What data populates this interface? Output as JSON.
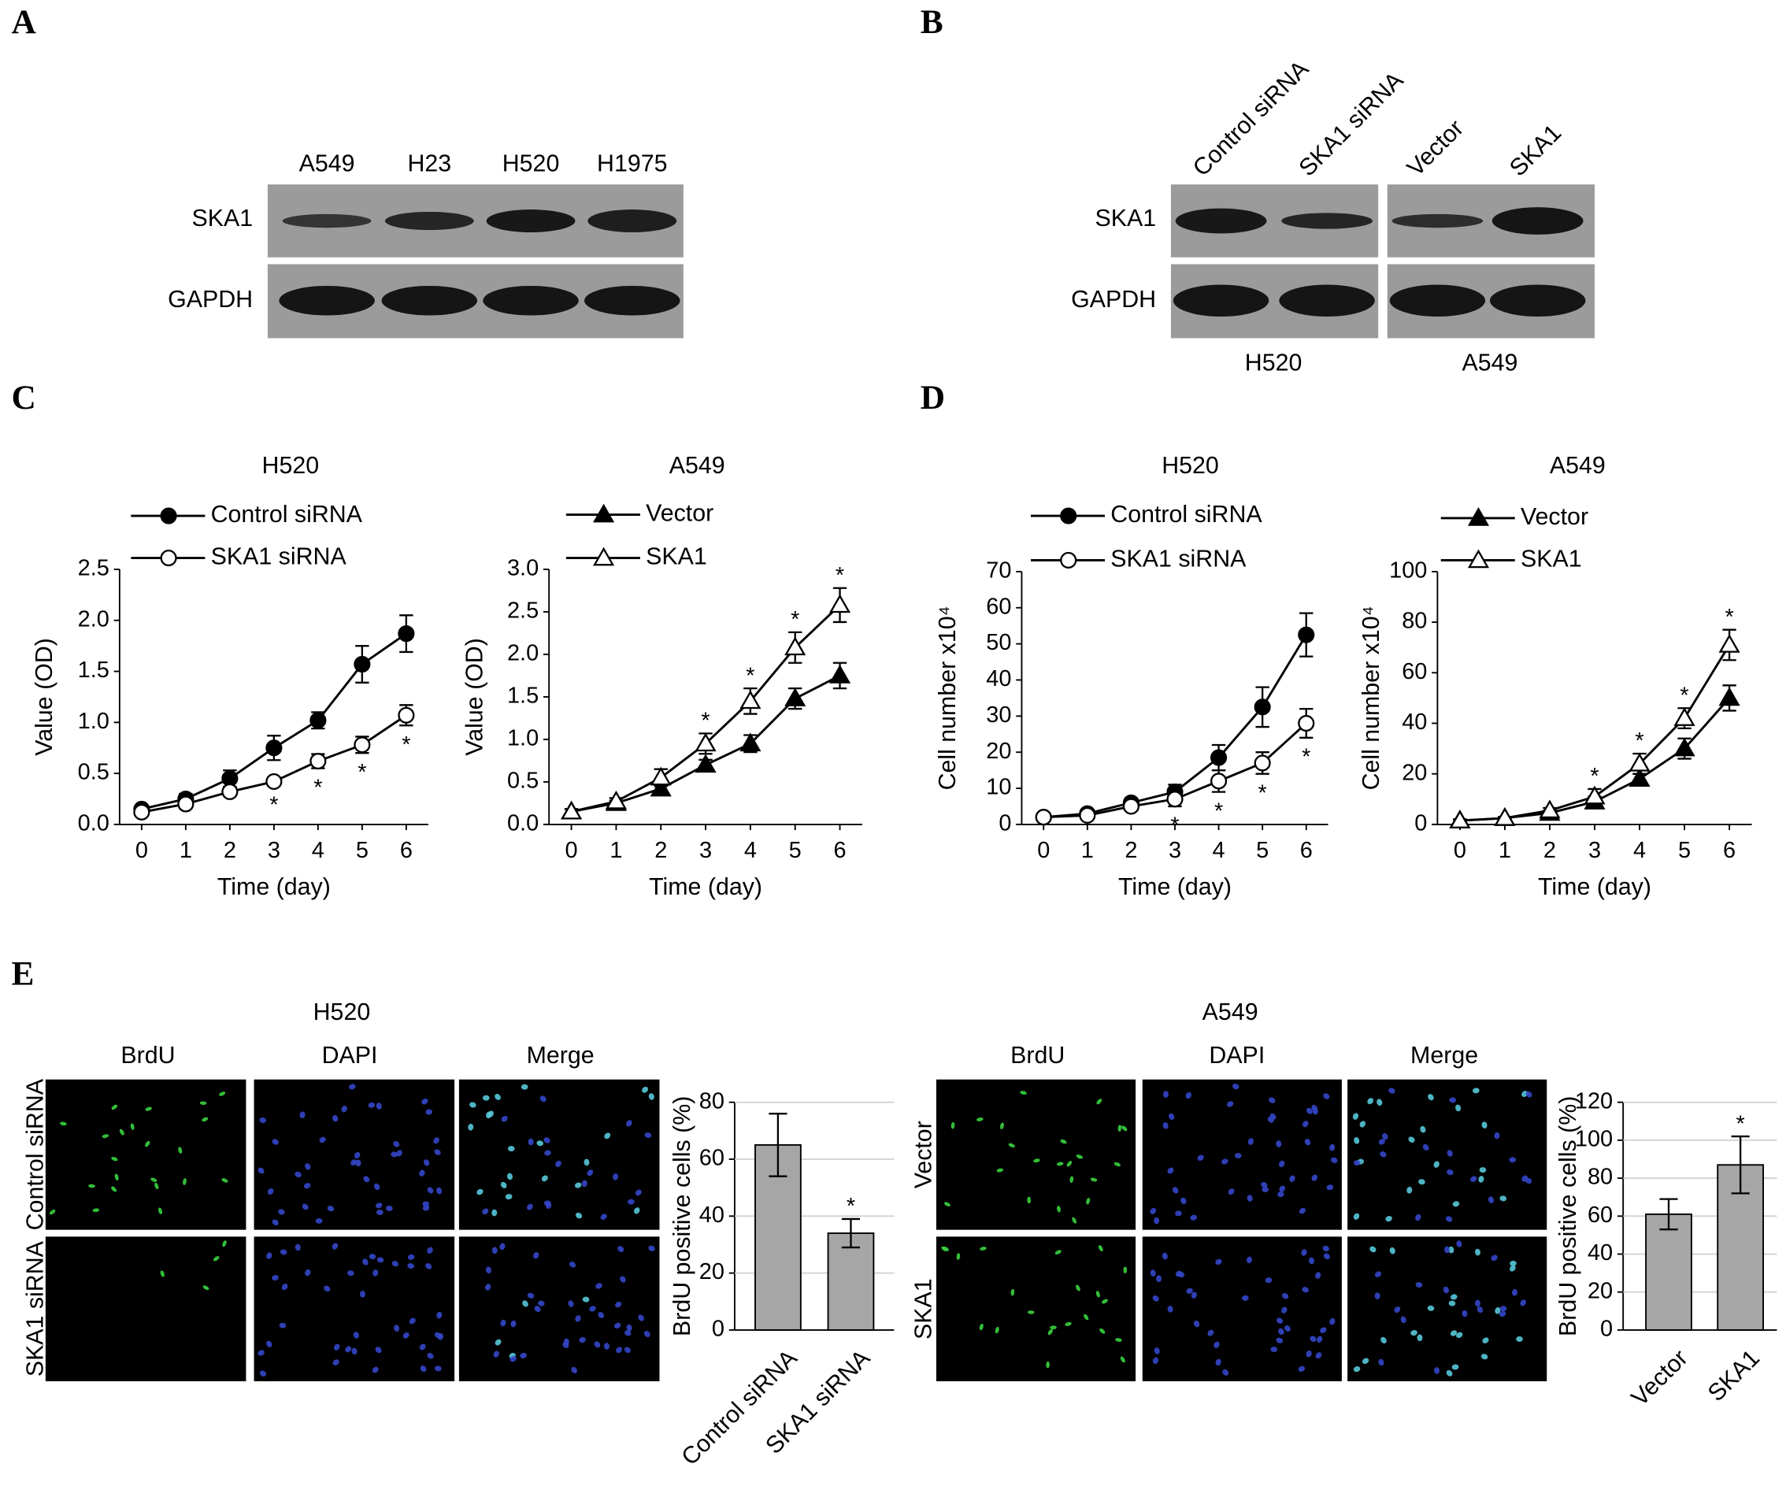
{
  "panels": [
    "A",
    "B",
    "C",
    "D",
    "E"
  ],
  "blot_a": {
    "lanes": [
      "A549",
      "H23",
      "H520",
      "H1975"
    ],
    "rows": [
      "SKA1",
      "GAPDH"
    ]
  },
  "blot_b": {
    "lanes": [
      "Control siRNA",
      "SKA1 siRNA",
      "Vector",
      "SKA1"
    ],
    "rows": [
      "SKA1",
      "GAPDH"
    ],
    "groups": [
      "H520",
      "A549"
    ]
  },
  "imaging": [
    {
      "columns": [
        "BrdU",
        "DAPI",
        "Merge"
      ],
      "rows": [
        "Control siRNA",
        "SKA1 siRNA"
      ]
    },
    {
      "columns": [
        "BrdU",
        "DAPI",
        "Merge"
      ],
      "rows": [
        "Vector",
        "SKA1"
      ]
    }
  ],
  "chart_data": [
    {
      "type": "line",
      "title": "H520",
      "xlabel": "Time (day)",
      "ylabel": "Value (OD)",
      "x": [
        0,
        1,
        2,
        3,
        4,
        5,
        6
      ],
      "xlim": [
        -0.5,
        6.5
      ],
      "xticks": [
        0,
        1,
        2,
        3,
        4,
        5,
        6
      ],
      "ylim": [
        0,
        2.5
      ],
      "yticks": [
        {
          "value": 0,
          "label": "0.0"
        },
        0.5,
        {
          "value": 1,
          "label": "1.0"
        },
        1.5,
        {
          "value": 2,
          "label": "2.0"
        },
        2.5
      ],
      "series": [
        {
          "name": "Control siRNA",
          "color": "#000000",
          "marker": "circle",
          "filled": true,
          "values": [
            0.15,
            0.25,
            0.45,
            0.75,
            1.02,
            1.57,
            1.87
          ],
          "errors": [
            0.03,
            0.05,
            0.08,
            0.12,
            0.08,
            0.18,
            0.18
          ]
        },
        {
          "name": "SKA1 siRNA",
          "color": "#000000",
          "marker": "circle",
          "filled": false,
          "values": [
            0.12,
            0.2,
            0.32,
            0.42,
            0.62,
            0.78,
            1.07
          ],
          "errors": [
            0.03,
            0.04,
            0.04,
            0.04,
            0.07,
            0.08,
            0.1
          ]
        }
      ],
      "annotations": [
        {
          "text": "*",
          "x": 3,
          "position": "below"
        },
        {
          "text": "*",
          "x": 4,
          "position": "below"
        },
        {
          "text": "*",
          "x": 5,
          "position": "below"
        },
        {
          "text": "*",
          "x": 6,
          "position": "below"
        }
      ]
    },
    {
      "type": "line",
      "title": "A549",
      "xlabel": "Time (day)",
      "ylabel": "Value (OD)",
      "x": [
        0,
        1,
        2,
        3,
        4,
        5,
        6
      ],
      "xlim": [
        -0.5,
        6.5
      ],
      "xticks": [
        0,
        1,
        2,
        3,
        4,
        5,
        6
      ],
      "ylim": [
        0,
        3
      ],
      "yticks": [
        {
          "value": 0,
          "label": "0.0"
        },
        0.5,
        {
          "value": 1,
          "label": "1.0"
        },
        1.5,
        {
          "value": 2,
          "label": "2.0"
        },
        2.5,
        {
          "value": 3,
          "label": "3.0"
        }
      ],
      "series": [
        {
          "name": "Vector",
          "color": "#000000",
          "marker": "triangle",
          "filled": true,
          "values": [
            0.15,
            0.25,
            0.42,
            0.7,
            0.95,
            1.48,
            1.75
          ],
          "errors": [
            0.03,
            0.03,
            0.05,
            0.06,
            0.1,
            0.12,
            0.15
          ]
        },
        {
          "name": "SKA1",
          "color": "#000000",
          "marker": "triangle",
          "filled": false,
          "values": [
            0.15,
            0.27,
            0.55,
            0.95,
            1.45,
            2.08,
            2.58
          ],
          "errors": [
            0.03,
            0.04,
            0.1,
            0.12,
            0.15,
            0.18,
            0.2
          ]
        }
      ],
      "annotations": [
        {
          "text": "*",
          "x": 3,
          "position": "above"
        },
        {
          "text": "*",
          "x": 4,
          "position": "above"
        },
        {
          "text": "*",
          "x": 5,
          "position": "above"
        },
        {
          "text": "*",
          "x": 6,
          "position": "above"
        }
      ]
    },
    {
      "type": "line",
      "title": "H520",
      "xlabel": "Time (day)",
      "ylabel": "Cell number x10⁴",
      "x": [
        0,
        1,
        2,
        3,
        4,
        5,
        6
      ],
      "xlim": [
        -0.5,
        6.5
      ],
      "xticks": [
        0,
        1,
        2,
        3,
        4,
        5,
        6
      ],
      "ylim": [
        0,
        70
      ],
      "yticks": [
        0,
        10,
        20,
        30,
        40,
        50,
        60,
        70
      ],
      "series": [
        {
          "name": "Control siRNA",
          "color": "#000000",
          "marker": "circle",
          "filled": true,
          "values": [
            2,
            3,
            6,
            9,
            18.5,
            32.5,
            52.5
          ],
          "errors": [
            0.5,
            1,
            1,
            2,
            3.5,
            5.5,
            6
          ]
        },
        {
          "name": "SKA1 siRNA",
          "color": "#000000",
          "marker": "circle",
          "filled": false,
          "values": [
            2,
            2.5,
            5,
            7,
            12,
            17,
            28
          ],
          "errors": [
            0.5,
            0.5,
            1,
            2,
            3,
            3,
            4
          ]
        }
      ],
      "annotations": [
        {
          "text": "*",
          "x": 3,
          "position": "below"
        },
        {
          "text": "*",
          "x": 4,
          "position": "below"
        },
        {
          "text": "*",
          "x": 5,
          "position": "below"
        },
        {
          "text": "*",
          "x": 6,
          "position": "below"
        }
      ]
    },
    {
      "type": "line",
      "title": "A549",
      "xlabel": "Time (day)",
      "ylabel": "Cell number x10⁴",
      "x": [
        0,
        1,
        2,
        3,
        4,
        5,
        6
      ],
      "xlim": [
        -0.5,
        6.5
      ],
      "xticks": [
        0,
        1,
        2,
        3,
        4,
        5,
        6
      ],
      "ylim": [
        0,
        100
      ],
      "yticks": [
        0,
        20,
        40,
        60,
        80,
        100
      ],
      "series": [
        {
          "name": "Vector",
          "color": "#000000",
          "marker": "triangle",
          "filled": true,
          "values": [
            1.5,
            2.5,
            4.5,
            9,
            18,
            30,
            50
          ],
          "errors": [
            0.5,
            0.5,
            1,
            2,
            2,
            4,
            5
          ]
        },
        {
          "name": "SKA1",
          "color": "#000000",
          "marker": "triangle",
          "filled": false,
          "values": [
            1.5,
            2.5,
            5.5,
            11,
            24,
            42,
            71
          ],
          "errors": [
            0.5,
            0.5,
            1,
            3,
            4,
            4,
            6
          ]
        }
      ],
      "annotations": [
        {
          "text": "*",
          "x": 3,
          "position": "above"
        },
        {
          "text": "*",
          "x": 4,
          "position": "above"
        },
        {
          "text": "*",
          "x": 5,
          "position": "above"
        },
        {
          "text": "*",
          "x": 6,
          "position": "above"
        }
      ]
    },
    {
      "type": "bar",
      "title": "H520",
      "ylabel": "BrdU positive cells (%)",
      "categories": [
        "Control siRNA",
        "SKA1 siRNA"
      ],
      "values": [
        65,
        34
      ],
      "errors": [
        11,
        5
      ],
      "color": "#a6a6a6",
      "ylim": [
        0,
        80
      ],
      "yticks": [
        0,
        20,
        40,
        60,
        80
      ],
      "grid": true,
      "annotations": [
        {
          "text": "*",
          "category": "SKA1 siRNA"
        }
      ]
    },
    {
      "type": "bar",
      "title": "A549",
      "ylabel": "BrdU positive cells (%)",
      "categories": [
        "Vector",
        "SKA1"
      ],
      "values": [
        61,
        87
      ],
      "errors": [
        8,
        15
      ],
      "color": "#a6a6a6",
      "ylim": [
        0,
        120
      ],
      "yticks": [
        0,
        20,
        40,
        60,
        80,
        100,
        120
      ],
      "grid": true,
      "annotations": [
        {
          "text": "*",
          "category": "SKA1"
        }
      ]
    }
  ]
}
